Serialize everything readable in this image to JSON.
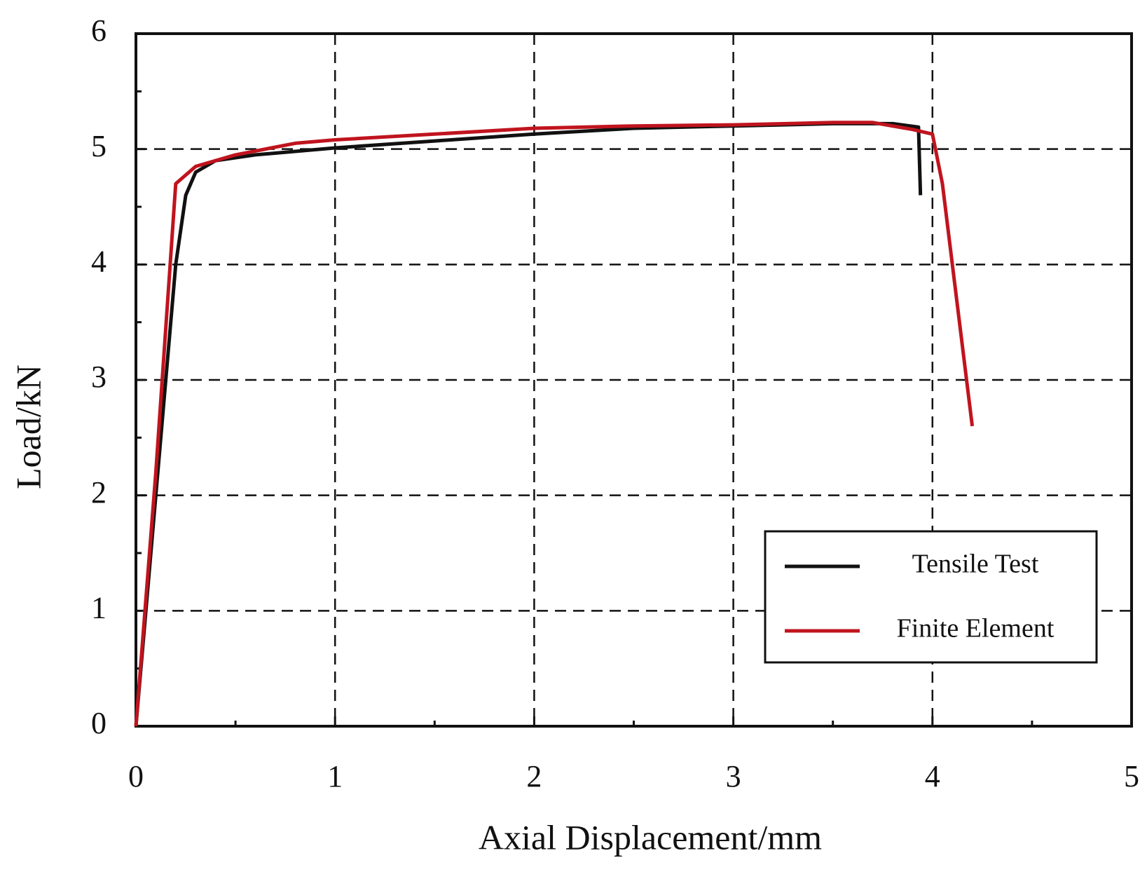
{
  "chart_data": {
    "type": "line",
    "x_label": "Axial Displacement/mm",
    "y_label": "Load/kN",
    "xlim": [
      0,
      5
    ],
    "ylim": [
      0,
      6
    ],
    "xticks": [
      0,
      1,
      2,
      3,
      4,
      5
    ],
    "yticks": [
      0,
      1,
      2,
      3,
      4,
      5,
      6
    ],
    "grid": true,
    "legend": "lower right",
    "series": [
      {
        "name": "Tensile Test",
        "color": "#111111",
        "x": [
          0,
          0.1,
          0.2,
          0.25,
          0.3,
          0.4,
          0.6,
          1,
          1.5,
          2,
          2.5,
          3,
          3.5,
          3.8,
          3.93,
          3.94
        ],
        "values": [
          0,
          2,
          4,
          4.6,
          4.8,
          4.9,
          4.95,
          5.01,
          5.07,
          5.13,
          5.18,
          5.2,
          5.22,
          5.22,
          5.19,
          4.6
        ]
      },
      {
        "name": "Finite Element",
        "color": "#c0141e",
        "x": [
          0,
          0.1,
          0.2,
          0.3,
          0.5,
          0.8,
          1,
          1.5,
          2,
          2.5,
          3,
          3.5,
          3.7,
          3.9,
          4,
          4.05,
          4.2
        ],
        "values": [
          0,
          2.2,
          4.7,
          4.85,
          4.95,
          5.05,
          5.08,
          5.13,
          5.18,
          5.2,
          5.21,
          5.23,
          5.23,
          5.17,
          5.13,
          4.7,
          2.6
        ]
      }
    ]
  }
}
